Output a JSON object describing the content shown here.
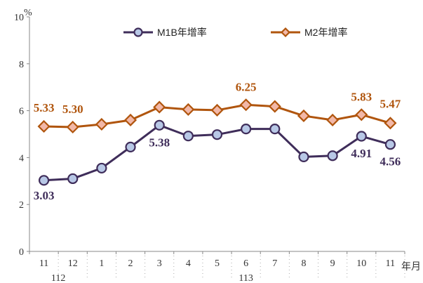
{
  "chart_data": {
    "type": "line",
    "unit": "%",
    "x_unit": "年月",
    "ylim": [
      0,
      10
    ],
    "yticks": [
      0,
      2,
      4,
      6,
      8,
      10
    ],
    "categories": [
      "11",
      "12",
      "1",
      "2",
      "3",
      "4",
      "5",
      "6",
      "7",
      "8",
      "9",
      "10",
      "11"
    ],
    "year_labels": [
      {
        "label": "112",
        "category_index": 0.5
      },
      {
        "label": "113",
        "category_index": 7
      }
    ],
    "legend_position": "top",
    "grid": false,
    "series": [
      {
        "name": "M1B年增率",
        "color": "#3f2d5a",
        "marker": "circle",
        "marker_fill": "#b8c8e6",
        "values": [
          3.03,
          3.1,
          3.55,
          4.45,
          5.38,
          4.92,
          4.98,
          5.22,
          5.22,
          4.03,
          4.08,
          4.91,
          4.56
        ],
        "labels": [
          {
            "index": 0,
            "text": "3.03"
          },
          {
            "index": 4,
            "text": "5.38"
          },
          {
            "index": 11,
            "text": "4.91"
          },
          {
            "index": 12,
            "text": "4.56"
          }
        ]
      },
      {
        "name": "M2年增率",
        "color": "#b0550d",
        "marker": "diamond",
        "marker_fill": "#f2b8a8",
        "values": [
          5.33,
          5.3,
          5.42,
          5.6,
          6.15,
          6.05,
          6.02,
          6.25,
          6.18,
          5.78,
          5.6,
          5.83,
          5.47
        ],
        "labels": [
          {
            "index": 0,
            "text": "5.33"
          },
          {
            "index": 1,
            "text": "5.30"
          },
          {
            "index": 7,
            "text": "6.25"
          },
          {
            "index": 11,
            "text": "5.83"
          },
          {
            "index": 12,
            "text": "5.47"
          }
        ]
      }
    ]
  }
}
